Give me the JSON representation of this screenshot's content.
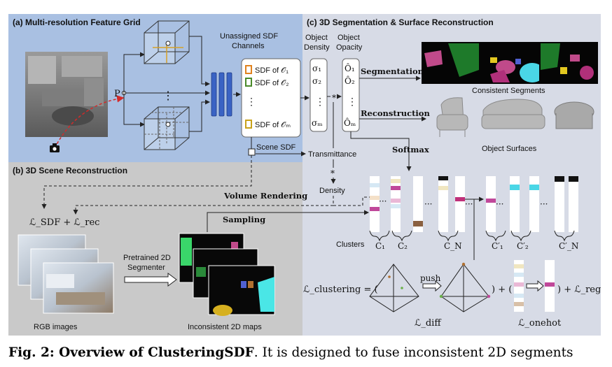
{
  "panels": {
    "a_title": "(a) Multi-resolution Feature Grid",
    "b_title": "(b) 3D Scene Reconstruction",
    "c_title": "(c) 3D Segmentation & Surface Reconstruction"
  },
  "grid": {
    "point_label": "P",
    "channels_title_1": "Unassigned SDF",
    "channels_title_2": "Channels",
    "channel_1": "SDF of 𝒪₁",
    "channel_2": "SDF of 𝒪₂",
    "channel_m": "SDF of 𝒪ₘ",
    "scene_sdf": "Scene SDF",
    "transmittance": "Transmittance",
    "density": "Density",
    "volume_rendering": "Volume Rendering",
    "dots": "⋮",
    "colors": {
      "orange": "#e0821e",
      "green": "#4a8a2a",
      "yellow": "#c9a21a",
      "mlp": "#3a63c4"
    }
  },
  "heads": {
    "density_title_1": "Object",
    "density_title_2": "Density",
    "opacity_title_1": "Object",
    "opacity_title_2": "Opacity",
    "sigma_1": "σ₁",
    "sigma_2": "σ₂",
    "sigma_m": "σₘ",
    "ohat_1": "Ô₁",
    "ohat_2": "Ô₂",
    "ohat_m": "Ôₘ",
    "star": "*",
    "segmentation": "Segmentation",
    "reconstruction": "Reconstruction",
    "softmax": "Softmax",
    "consistent_segments": "Consistent Segments",
    "object_surfaces": "Object Surfaces"
  },
  "recon": {
    "loss": "ℒ_SDF + ℒ_rec",
    "pretrained_1": "Pretrained 2D",
    "pretrained_2": "Segmenter",
    "rgb_images": "RGB images",
    "inconsistent_maps": "Inconsistent 2D maps",
    "sampling": "Sampling"
  },
  "clusters": {
    "label": "Clusters",
    "c1": "C₁",
    "c2": "C₂",
    "cn": "C_N",
    "c1p": "C′₁",
    "c2p": "C′₂",
    "cnp": "C′_N",
    "ellipsis": "···"
  },
  "loss": {
    "clustering": "ℒ_clustering = (",
    "push": "push",
    "mid": ") + (",
    "end": ") + ℒ_reg",
    "diff": "ℒ_diff",
    "onehot": "ℒ_onehot"
  },
  "caption": {
    "bold": "Fig. 2: Overview of ClusteringSDF",
    "rest": ". It is designed to fuse inconsistent 2D segments"
  }
}
